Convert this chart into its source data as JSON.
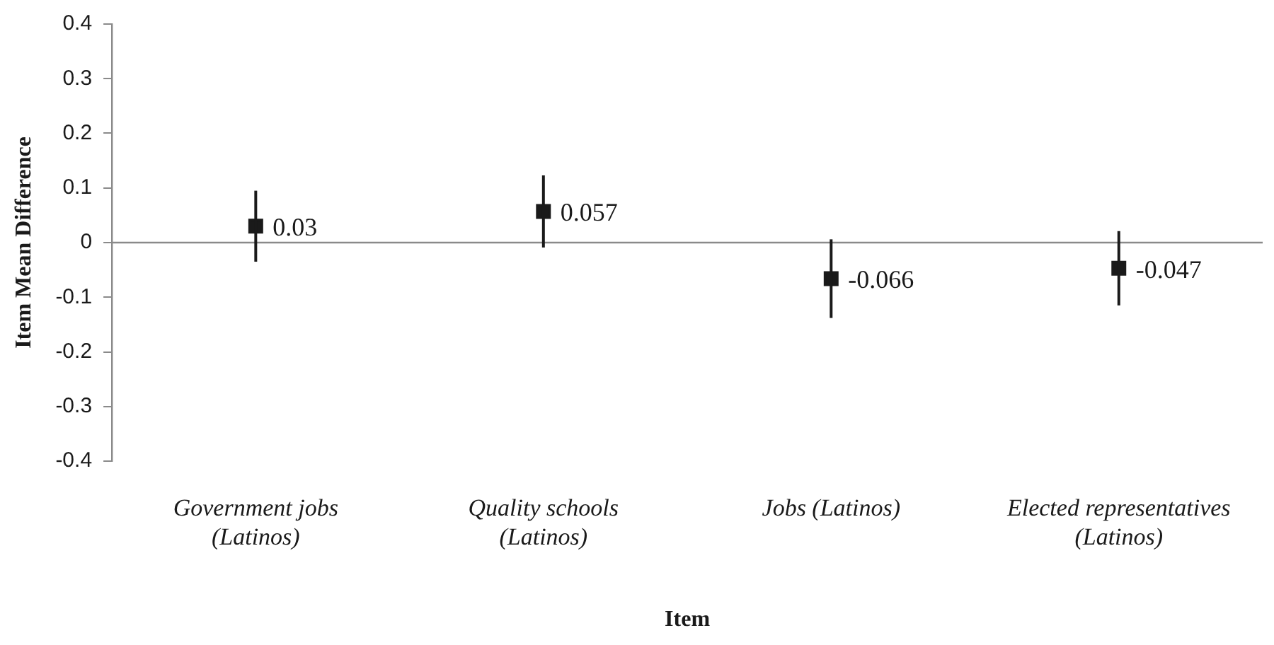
{
  "chart_data": {
    "type": "scatter",
    "xlabel": "Item",
    "ylabel": "Item Mean Difference",
    "categories": [
      "Government jobs (Latinos)",
      "Quality schools (Latinos)",
      "Jobs (Latinos)",
      "Elected representatives (Latinos)"
    ],
    "values": [
      0.03,
      0.057,
      -0.066,
      -0.047
    ],
    "errors": [
      0.065,
      0.066,
      0.072,
      0.068
    ],
    "color": "#1a1a1a",
    "marker": "square",
    "data_labels": true,
    "ylim": [
      -0.4,
      0.4
    ],
    "yticks": [
      -0.4,
      -0.3,
      -0.2,
      -0.1,
      0,
      0.1,
      0.2,
      0.3,
      0.4
    ]
  }
}
